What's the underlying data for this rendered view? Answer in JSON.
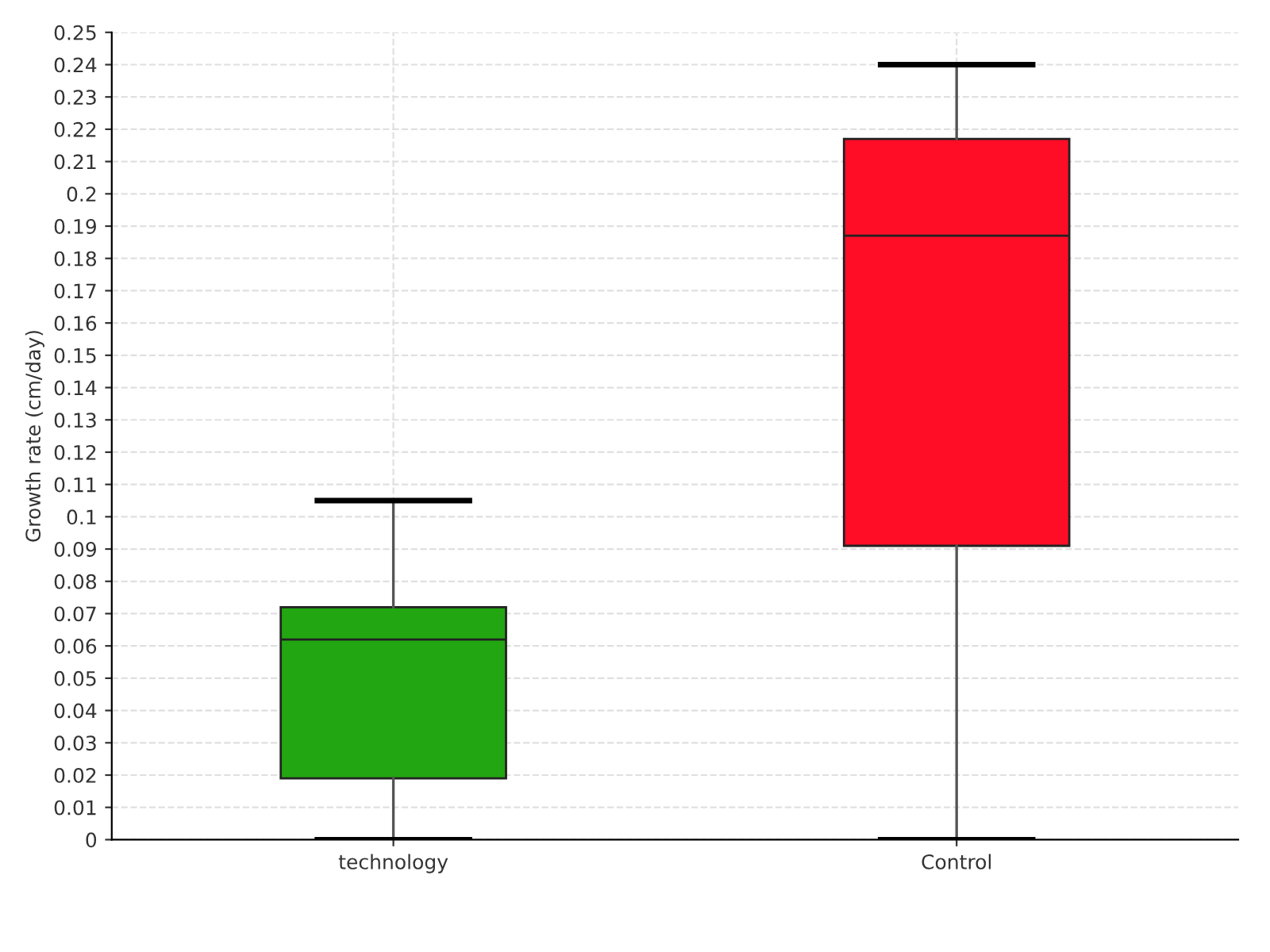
{
  "chart_data": {
    "type": "box",
    "ylabel": "Growth rate (cm/day)",
    "categories": [
      "technology",
      "Control"
    ],
    "boxes": [
      {
        "low": 0,
        "q1": 0.019,
        "median": 0.062,
        "q3": 0.072,
        "high": 0.105
      },
      {
        "low": 0,
        "q1": 0.091,
        "median": 0.187,
        "q3": 0.217,
        "high": 0.24
      }
    ],
    "colors": [
      "#22a611",
      "#ff0d26"
    ],
    "ylim": [
      0,
      0.25
    ],
    "yticks": [
      0,
      0.01,
      0.02,
      0.03,
      0.04,
      0.05,
      0.06,
      0.07,
      0.08,
      0.09,
      0.1,
      0.11,
      0.12,
      0.13,
      0.14,
      0.15,
      0.16,
      0.17,
      0.18,
      0.19,
      0.2,
      0.21,
      0.22,
      0.23,
      0.24,
      0.25
    ],
    "grid": true
  }
}
